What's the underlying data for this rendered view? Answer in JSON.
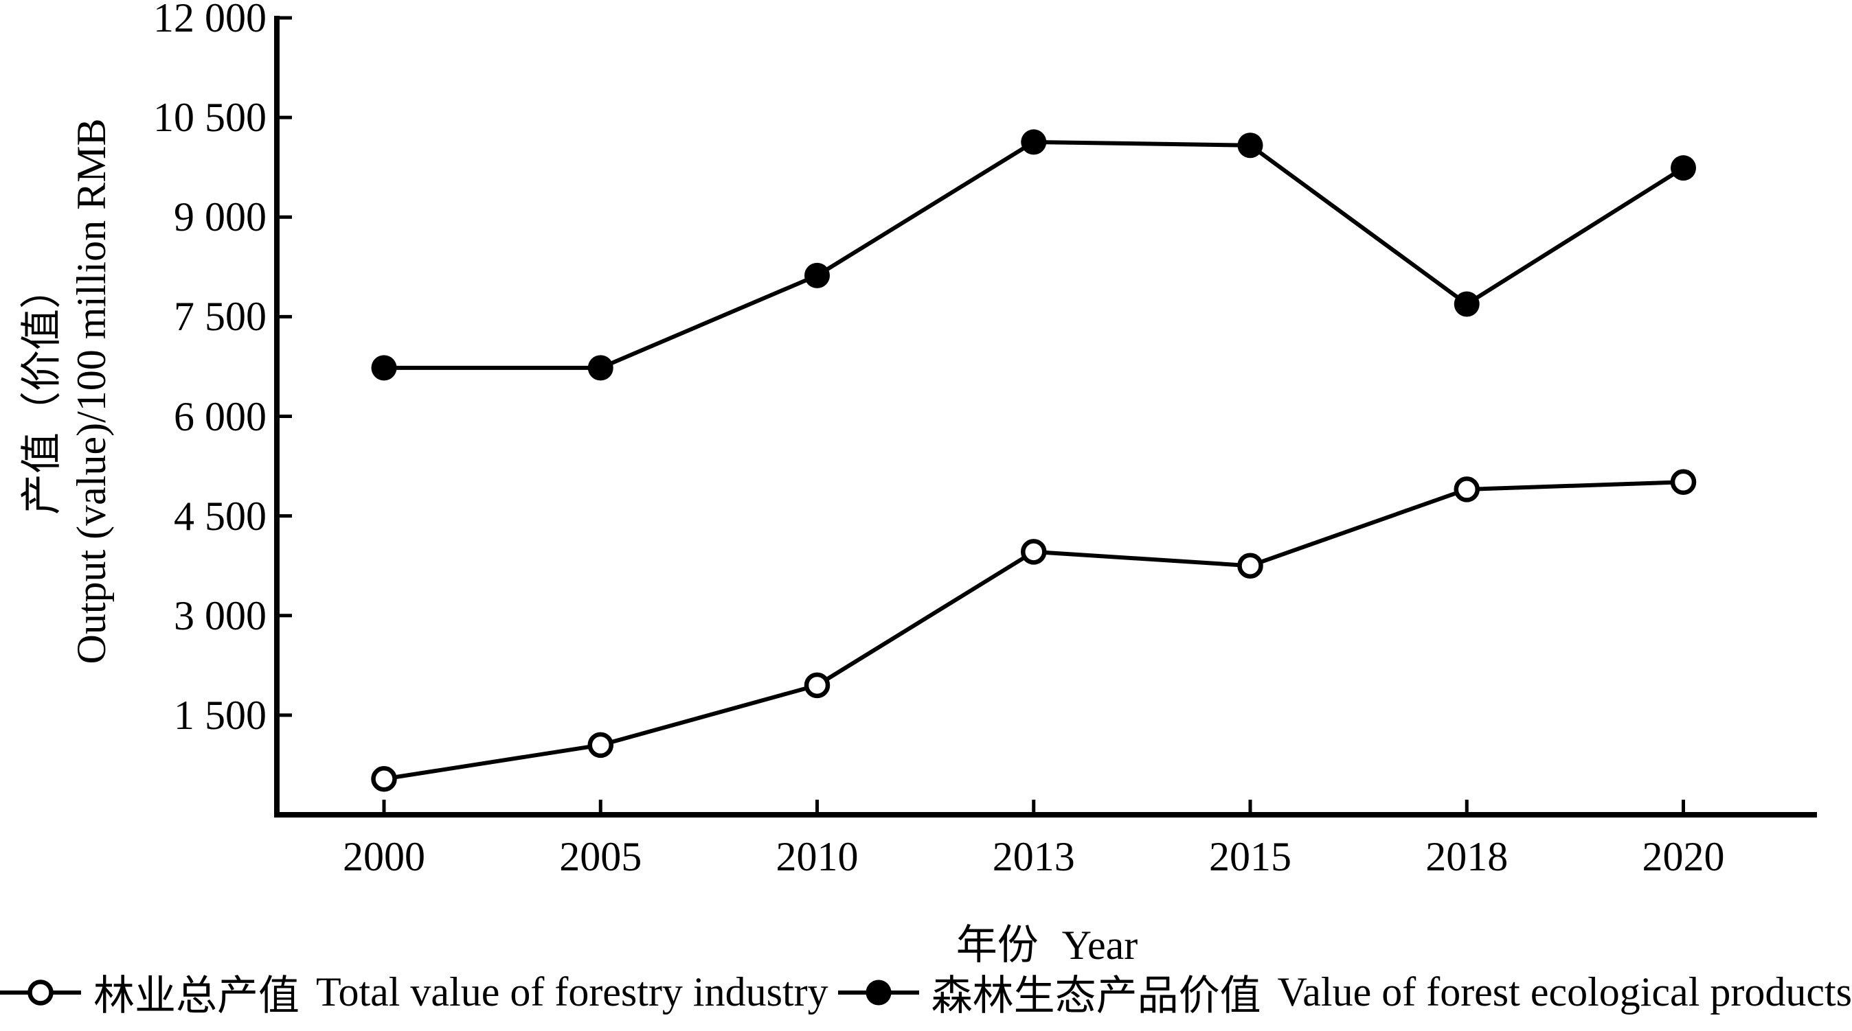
{
  "figure": {
    "background": "#ffffff",
    "line_color": "#000000"
  },
  "y_axis": {
    "title_zh": "产值（价值）",
    "title_en": "Output (value)/100 million RMB",
    "tick_values": [
      1500,
      3000,
      4500,
      6000,
      7500,
      9000,
      10500,
      12000
    ],
    "tick_labels": [
      "1 500",
      "3 000",
      "4 500",
      "6 000",
      "7 500",
      "9 000",
      "10 500",
      "12 000"
    ],
    "min": 0,
    "max": 12000
  },
  "x_axis": {
    "title_zh": "年份",
    "title_en": "Year",
    "tick_labels": [
      "2000",
      "2005",
      "2010",
      "2013",
      "2015",
      "2018",
      "2020"
    ]
  },
  "legend": [
    {
      "marker": "open-circle",
      "label_zh": "林业总产值",
      "label_en": "Total value of forestry industry"
    },
    {
      "marker": "filled-circle",
      "label_zh": "森林生态产品价值",
      "label_en": "Value of forest ecological products"
    }
  ],
  "chart_data": {
    "type": "line",
    "title": "",
    "categories": [
      "2000",
      "2005",
      "2010",
      "2013",
      "2015",
      "2018",
      "2020"
    ],
    "series": [
      {
        "name": "林业总产值 Total value of forestry industry",
        "marker": "open-circle",
        "values": [
          540,
          1050,
          1950,
          3960,
          3750,
          4900,
          5010
        ]
      },
      {
        "name": "森林生态产品价值 Value of forest ecological products",
        "marker": "filled-circle",
        "values": [
          6730,
          6730,
          8120,
          10130,
          10080,
          7690,
          9740
        ]
      }
    ],
    "xlabel": "年份 Year",
    "ylabel": "产值（价值） Output (value)/100 million RMB",
    "ylim": [
      0,
      12000
    ],
    "y_ticks": [
      1500,
      3000,
      4500,
      6000,
      7500,
      9000,
      10500,
      12000
    ],
    "grid": false,
    "legend_position": "bottom"
  }
}
